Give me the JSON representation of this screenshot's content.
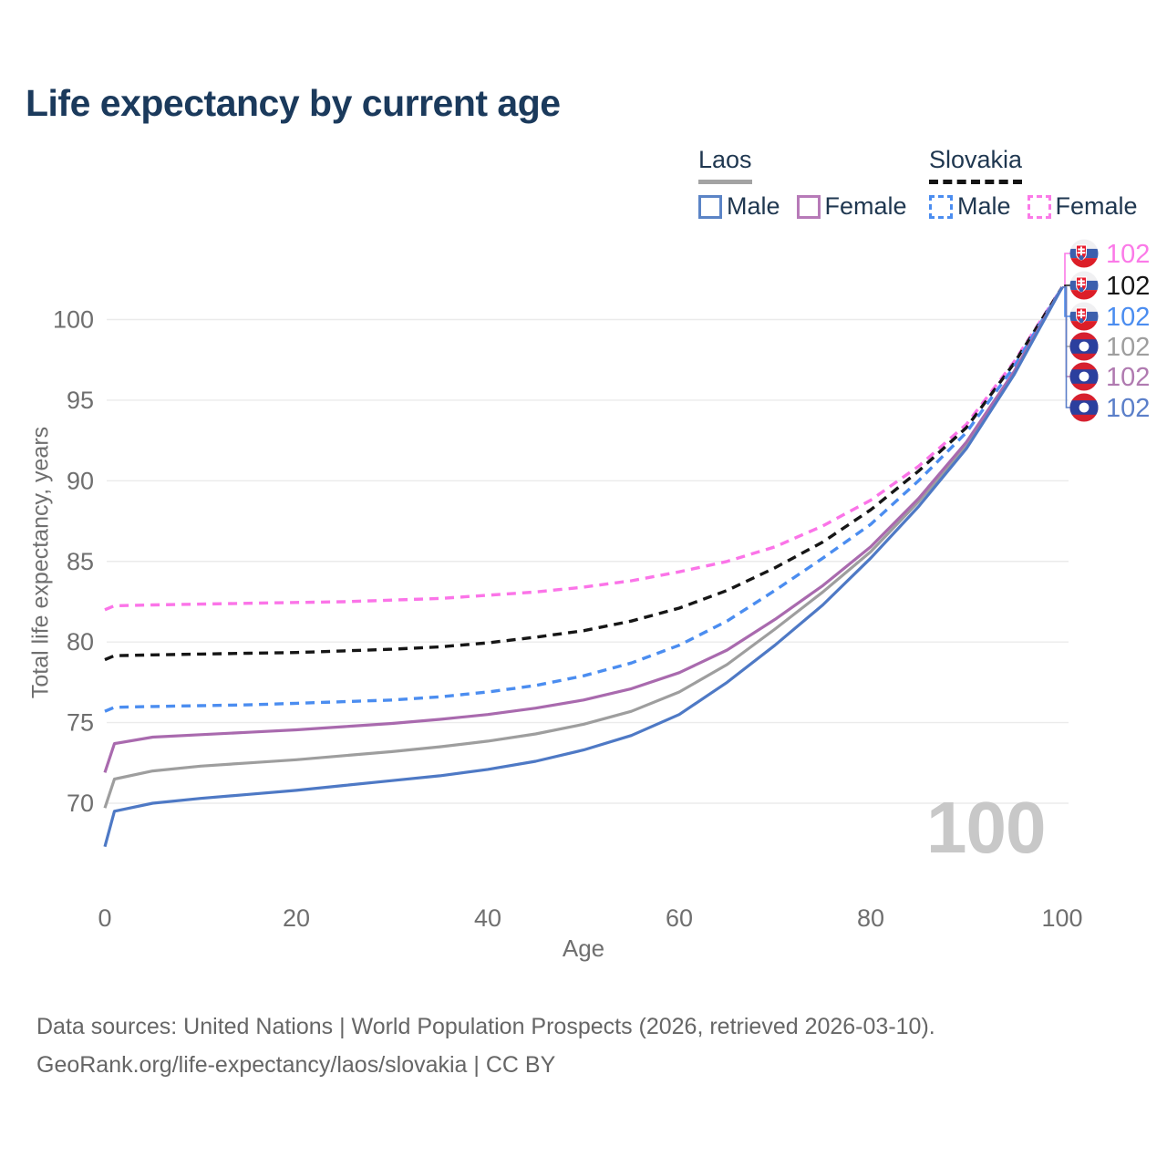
{
  "title": "Life expectancy by current age",
  "legend": {
    "laos": {
      "country": "Laos",
      "male": "Male",
      "female": "Female"
    },
    "slovakia": {
      "country": "Slovakia",
      "male": "Male",
      "female": "Female"
    }
  },
  "watermark": "100",
  "footer": {
    "line1": "Data sources: United Nations | World Population Prospects (2026, retrieved 2026-03-10).",
    "line2": "GeoRank.org/life-expectancy/laos/slovakia | CC BY"
  },
  "colors": {
    "laos_male": "#4e79c5",
    "laos_female": "#a96aae",
    "laos_both": "#9e9e9e",
    "slovakia_male": "#4b8df0",
    "slovakia_female": "#fb74e8",
    "slovakia_both": "#161616",
    "axis_text": "#6f6f6f",
    "gridline": "#ebebeb",
    "title_text": "#1b3a5c"
  },
  "chart_data": {
    "type": "line",
    "title": "Life expectancy by current age",
    "xlabel": "Age",
    "ylabel": "Total life expectancy, years",
    "x_ticks": [
      0,
      20,
      40,
      60,
      80,
      100
    ],
    "y_ticks": [
      70,
      75,
      80,
      85,
      90,
      95,
      100
    ],
    "xlim": [
      0,
      100
    ],
    "ylim": [
      67,
      102.5
    ],
    "grid": "horizontal",
    "legend_position": "top-right",
    "ages": [
      0,
      1,
      5,
      10,
      15,
      20,
      25,
      30,
      35,
      40,
      45,
      50,
      55,
      60,
      65,
      70,
      75,
      80,
      85,
      90,
      95,
      100
    ],
    "series": [
      {
        "name": "Slovakia Female",
        "country": "Slovakia",
        "sex": "Female",
        "color": "#fb74e8",
        "dashed": true,
        "values": [
          82.0,
          82.25,
          82.3,
          82.35,
          82.4,
          82.45,
          82.5,
          82.6,
          82.7,
          82.9,
          83.1,
          83.4,
          83.8,
          84.35,
          85.0,
          85.9,
          87.2,
          88.8,
          90.9,
          93.5,
          97.4,
          102
        ]
      },
      {
        "name": "Slovakia",
        "country": "Slovakia",
        "sex": "Both",
        "color": "#161616",
        "dashed": true,
        "values": [
          78.9,
          79.15,
          79.2,
          79.25,
          79.3,
          79.35,
          79.45,
          79.55,
          79.7,
          79.95,
          80.3,
          80.7,
          81.3,
          82.1,
          83.2,
          84.6,
          86.2,
          88.2,
          90.6,
          93.3,
          97.3,
          102
        ]
      },
      {
        "name": "Slovakia Male",
        "country": "Slovakia",
        "sex": "Male",
        "color": "#4b8df0",
        "dashed": true,
        "values": [
          75.7,
          75.95,
          76.0,
          76.05,
          76.1,
          76.2,
          76.3,
          76.4,
          76.6,
          76.9,
          77.3,
          77.9,
          78.7,
          79.8,
          81.3,
          83.2,
          85.2,
          87.3,
          90.0,
          93.0,
          97.1,
          102
        ]
      },
      {
        "name": "Laos",
        "country": "Laos",
        "sex": "Both",
        "color": "#9e9e9e",
        "dashed": false,
        "values": [
          69.7,
          71.5,
          72.0,
          72.3,
          72.5,
          72.7,
          72.95,
          73.2,
          73.5,
          73.85,
          74.3,
          74.9,
          75.7,
          76.9,
          78.6,
          80.8,
          83.1,
          85.6,
          88.7,
          92.2,
          96.7,
          102
        ]
      },
      {
        "name": "Laos Female",
        "country": "Laos",
        "sex": "Female",
        "color": "#a96aae",
        "dashed": false,
        "values": [
          71.9,
          73.7,
          74.1,
          74.25,
          74.4,
          74.55,
          74.75,
          74.95,
          75.2,
          75.5,
          75.9,
          76.4,
          77.1,
          78.1,
          79.5,
          81.4,
          83.5,
          85.9,
          88.9,
          92.4,
          96.8,
          102
        ]
      },
      {
        "name": "Laos Male",
        "country": "Laos",
        "sex": "Male",
        "color": "#4e79c5",
        "dashed": false,
        "values": [
          67.3,
          69.5,
          70.0,
          70.3,
          70.55,
          70.8,
          71.1,
          71.4,
          71.7,
          72.1,
          72.6,
          73.3,
          74.2,
          75.5,
          77.5,
          79.8,
          82.3,
          85.2,
          88.4,
          92.0,
          96.6,
          102
        ]
      }
    ],
    "end_markers": [
      {
        "flag": "slovakia",
        "series": "Slovakia Female",
        "label": "102",
        "color": "#fb7ae8"
      },
      {
        "flag": "slovakia",
        "series": "Slovakia",
        "label": "102",
        "color": "#161616"
      },
      {
        "flag": "slovakia",
        "series": "Slovakia Male",
        "label": "102",
        "color": "#4b8df0"
      },
      {
        "flag": "laos",
        "series": "Laos",
        "label": "102",
        "color": "#9e9e9e"
      },
      {
        "flag": "laos",
        "series": "Laos Female",
        "label": "102",
        "color": "#b07ab0"
      },
      {
        "flag": "laos",
        "series": "Laos Male",
        "label": "102",
        "color": "#5b7fc9"
      }
    ]
  }
}
